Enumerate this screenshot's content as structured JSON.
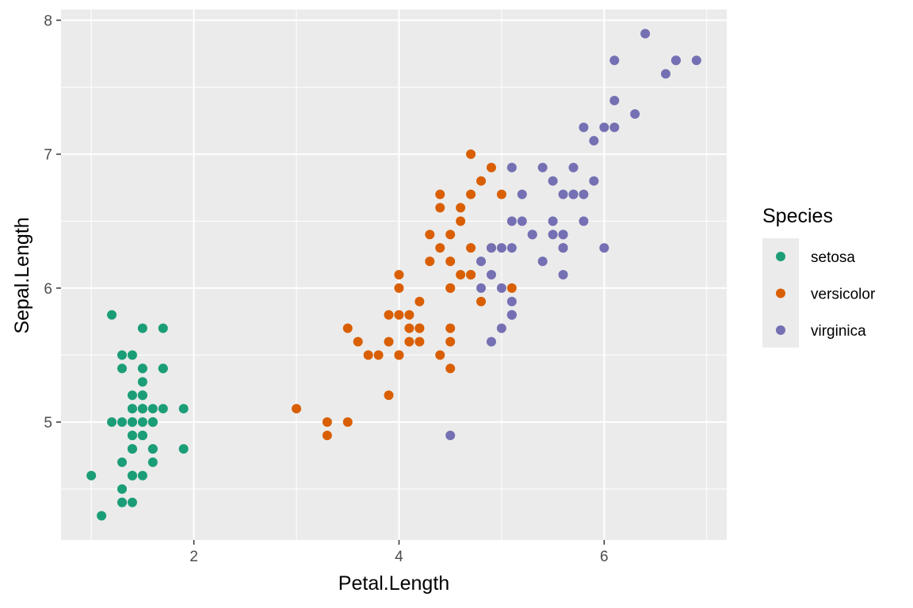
{
  "chart_data": {
    "type": "scatter",
    "xlabel": "Petal.Length",
    "ylabel": "Sepal.Length",
    "xlim": [
      0.705,
      7.195
    ],
    "ylim": [
      4.12,
      8.08
    ],
    "x_ticks": [
      2,
      4,
      6
    ],
    "y_ticks": [
      5,
      6,
      7,
      8
    ],
    "grid": true,
    "legend": {
      "title": "Species",
      "position": "right"
    },
    "series": [
      {
        "name": "setosa",
        "color": "#1b9e77",
        "points": [
          [
            1.4,
            5.1
          ],
          [
            1.4,
            4.9
          ],
          [
            1.3,
            4.7
          ],
          [
            1.5,
            4.6
          ],
          [
            1.4,
            5.0
          ],
          [
            1.7,
            5.4
          ],
          [
            1.4,
            4.6
          ],
          [
            1.5,
            5.0
          ],
          [
            1.4,
            4.4
          ],
          [
            1.5,
            4.9
          ],
          [
            1.5,
            5.4
          ],
          [
            1.6,
            4.8
          ],
          [
            1.4,
            4.8
          ],
          [
            1.1,
            4.3
          ],
          [
            1.2,
            5.8
          ],
          [
            1.5,
            5.7
          ],
          [
            1.3,
            5.4
          ],
          [
            1.4,
            5.1
          ],
          [
            1.7,
            5.7
          ],
          [
            1.5,
            5.1
          ],
          [
            1.7,
            5.4
          ],
          [
            1.5,
            5.1
          ],
          [
            1.0,
            4.6
          ],
          [
            1.7,
            5.1
          ],
          [
            1.9,
            4.8
          ],
          [
            1.6,
            5.0
          ],
          [
            1.6,
            5.0
          ],
          [
            1.5,
            5.2
          ],
          [
            1.4,
            5.2
          ],
          [
            1.6,
            4.7
          ],
          [
            1.6,
            4.8
          ],
          [
            1.5,
            5.4
          ],
          [
            1.5,
            5.2
          ],
          [
            1.4,
            5.5
          ],
          [
            1.5,
            4.9
          ],
          [
            1.2,
            5.0
          ],
          [
            1.3,
            5.5
          ],
          [
            1.4,
            4.9
          ],
          [
            1.3,
            4.4
          ],
          [
            1.5,
            5.1
          ],
          [
            1.3,
            5.0
          ],
          [
            1.3,
            4.5
          ],
          [
            1.3,
            4.4
          ],
          [
            1.6,
            5.0
          ],
          [
            1.9,
            5.1
          ],
          [
            1.4,
            4.8
          ],
          [
            1.6,
            5.1
          ],
          [
            1.4,
            4.6
          ],
          [
            1.5,
            5.3
          ],
          [
            1.4,
            5.0
          ]
        ]
      },
      {
        "name": "versicolor",
        "color": "#d95f02",
        "points": [
          [
            4.7,
            7.0
          ],
          [
            4.5,
            6.4
          ],
          [
            4.9,
            6.9
          ],
          [
            4.0,
            5.5
          ],
          [
            4.6,
            6.5
          ],
          [
            4.5,
            5.7
          ],
          [
            4.7,
            6.3
          ],
          [
            3.3,
            4.9
          ],
          [
            4.6,
            6.6
          ],
          [
            3.9,
            5.2
          ],
          [
            3.5,
            5.0
          ],
          [
            4.2,
            5.9
          ],
          [
            4.0,
            6.0
          ],
          [
            4.7,
            6.1
          ],
          [
            3.6,
            5.6
          ],
          [
            4.4,
            6.7
          ],
          [
            4.5,
            5.6
          ],
          [
            4.1,
            5.8
          ],
          [
            4.5,
            6.2
          ],
          [
            3.9,
            5.6
          ],
          [
            4.8,
            5.9
          ],
          [
            4.0,
            6.1
          ],
          [
            4.9,
            6.3
          ],
          [
            4.7,
            6.1
          ],
          [
            4.3,
            6.4
          ],
          [
            4.4,
            6.6
          ],
          [
            4.8,
            6.8
          ],
          [
            5.0,
            6.7
          ],
          [
            4.5,
            6.0
          ],
          [
            3.5,
            5.7
          ],
          [
            3.8,
            5.5
          ],
          [
            3.7,
            5.5
          ],
          [
            3.9,
            5.8
          ],
          [
            5.1,
            6.0
          ],
          [
            4.5,
            5.4
          ],
          [
            4.5,
            6.0
          ],
          [
            4.7,
            6.7
          ],
          [
            4.4,
            6.3
          ],
          [
            4.1,
            5.6
          ],
          [
            4.0,
            5.5
          ],
          [
            4.4,
            5.5
          ],
          [
            4.6,
            6.1
          ],
          [
            4.0,
            5.8
          ],
          [
            3.3,
            5.0
          ],
          [
            4.2,
            5.6
          ],
          [
            4.2,
            5.7
          ],
          [
            4.2,
            5.7
          ],
          [
            4.3,
            6.2
          ],
          [
            3.0,
            5.1
          ],
          [
            4.1,
            5.7
          ]
        ]
      },
      {
        "name": "virginica",
        "color": "#7570b3",
        "points": [
          [
            6.0,
            6.3
          ],
          [
            5.1,
            5.8
          ],
          [
            5.9,
            7.1
          ],
          [
            5.6,
            6.3
          ],
          [
            5.8,
            6.5
          ],
          [
            6.6,
            7.6
          ],
          [
            4.5,
            4.9
          ],
          [
            6.3,
            7.3
          ],
          [
            5.8,
            6.7
          ],
          [
            6.1,
            7.2
          ],
          [
            5.1,
            6.5
          ],
          [
            5.3,
            6.4
          ],
          [
            5.5,
            6.8
          ],
          [
            5.0,
            5.7
          ],
          [
            5.1,
            5.8
          ],
          [
            5.3,
            6.4
          ],
          [
            5.5,
            6.5
          ],
          [
            6.7,
            7.7
          ],
          [
            6.9,
            7.7
          ],
          [
            5.0,
            6.0
          ],
          [
            5.7,
            6.9
          ],
          [
            4.9,
            5.6
          ],
          [
            6.7,
            7.7
          ],
          [
            4.9,
            6.3
          ],
          [
            5.7,
            6.7
          ],
          [
            6.0,
            7.2
          ],
          [
            4.8,
            6.2
          ],
          [
            4.9,
            6.1
          ],
          [
            5.6,
            6.4
          ],
          [
            5.8,
            7.2
          ],
          [
            6.1,
            7.4
          ],
          [
            6.4,
            7.9
          ],
          [
            5.6,
            6.4
          ],
          [
            5.1,
            6.3
          ],
          [
            5.6,
            6.1
          ],
          [
            6.1,
            7.7
          ],
          [
            5.6,
            6.3
          ],
          [
            5.5,
            6.4
          ],
          [
            4.8,
            6.0
          ],
          [
            5.4,
            6.9
          ],
          [
            5.6,
            6.7
          ],
          [
            5.1,
            6.9
          ],
          [
            5.1,
            5.8
          ],
          [
            5.9,
            6.8
          ],
          [
            5.7,
            6.7
          ],
          [
            5.2,
            6.7
          ],
          [
            5.0,
            6.3
          ],
          [
            5.2,
            6.5
          ],
          [
            5.4,
            6.2
          ],
          [
            5.1,
            5.9
          ]
        ]
      }
    ]
  }
}
